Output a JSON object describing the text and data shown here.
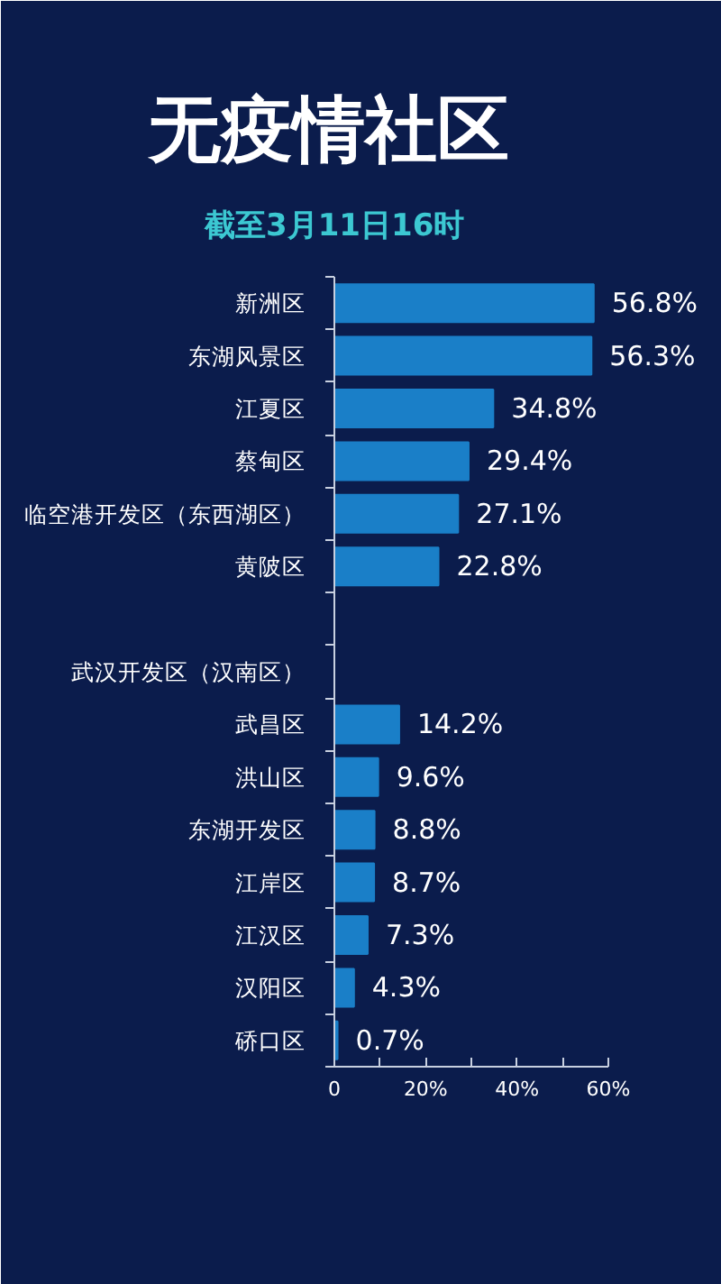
{
  "chart_data": {
    "type": "bar",
    "orientation": "horizontal",
    "title": "无疫情社区",
    "subtitle": "截至3月11日16时",
    "categories": [
      "新洲区",
      "东湖风景区",
      "江夏区",
      "蔡甸区",
      "临空港开发区（东西湖区）",
      "黄陂区",
      null,
      "武汉开发区（汉南区）",
      "武昌区",
      "洪山区",
      "东湖开发区",
      "江岸区",
      "江汉区",
      "汉阳区",
      "硚口区"
    ],
    "values": [
      56.8,
      56.3,
      34.8,
      29.4,
      27.1,
      22.8,
      null,
      null,
      14.2,
      9.6,
      8.8,
      8.7,
      7.3,
      4.3,
      0.7
    ],
    "value_labels": [
      "56.8%",
      "56.3%",
      "34.8%",
      "29.4%",
      "27.1%",
      "22.8%",
      null,
      null,
      "14.2%",
      "9.6%",
      "8.8%",
      "8.7%",
      "7.3%",
      "4.3%",
      "0.7%"
    ],
    "color": "#1a7fc8",
    "xlim": [
      0,
      60
    ],
    "xticks": [
      0,
      {
        "value": 10,
        "label": null
      },
      {
        "value": 20,
        "label": "20%"
      },
      {
        "value": 30,
        "label": null
      },
      {
        "value": 40,
        "label": "40%"
      },
      {
        "value": 50,
        "label": null
      },
      {
        "value": 60,
        "label": "60%"
      }
    ],
    "grid": false
  }
}
